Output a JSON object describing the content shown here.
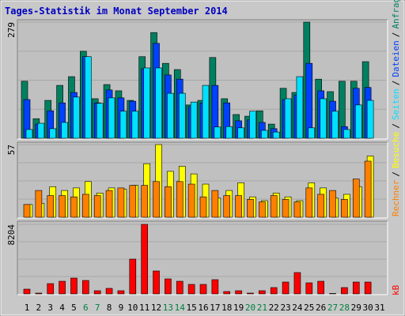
{
  "title": "Tages-Statistik im Monat September 2014",
  "separator": "/",
  "categories": [
    "1",
    "2",
    "3",
    "4",
    "5",
    "6",
    "7",
    "8",
    "9",
    "10",
    "11",
    "12",
    "13",
    "14",
    "15",
    "16",
    "17",
    "18",
    "19",
    "20",
    "21",
    "22",
    "23",
    "24",
    "25",
    "26",
    "27",
    "28",
    "29",
    "30",
    "31"
  ],
  "highlight_indices": [
    5,
    6,
    12,
    13,
    19,
    20,
    26,
    27
  ],
  "label_color": "#000000",
  "highlight_color": "#008040",
  "chart_data": [
    {
      "type": "bar",
      "ylim": [
        0,
        279
      ],
      "yticks": [
        279
      ],
      "series": [
        {
          "name": "Anfragen",
          "color": "#008060",
          "values": [
            137,
            47,
            91,
            127,
            148,
            209,
            95,
            129,
            114,
            91,
            196,
            254,
            180,
            165,
            80,
            91,
            194,
            95,
            57,
            53,
            66,
            34,
            120,
            110,
            279,
            142,
            112,
            137,
            137,
            184,
            null
          ]
        },
        {
          "name": "Dateien",
          "color": "#0040ff",
          "values": [
            93,
            34,
            66,
            85,
            110,
            196,
            85,
            116,
            97,
            89,
            167,
            228,
            152,
            142,
            76,
            85,
            127,
            85,
            42,
            44,
            38,
            23,
            93,
            104,
            180,
            114,
            89,
            28,
            120,
            122,
            null
          ]
        },
        {
          "name": "Seiten",
          "color": "#00e0ff",
          "values": [
            21,
            36,
            23,
            38,
            99,
            196,
            84,
            97,
            65,
            65,
            169,
            169,
            108,
            108,
            87,
            127,
            27,
            28,
            25,
            65,
            19,
            15,
            95,
            148,
            25,
            95,
            65,
            21,
            80,
            91,
            null
          ]
        }
      ]
    },
    {
      "type": "bar",
      "ylim": [
        0,
        57
      ],
      "yticks": [
        57
      ],
      "series": [
        {
          "name": "Besuche",
          "color": "#ffff00",
          "values": [
            10,
            11,
            24,
            21,
            23,
            28,
            19,
            23,
            22,
            25,
            42,
            57,
            36,
            40,
            34,
            26,
            15,
            21,
            27,
            16,
            13,
            19,
            16,
            13,
            27,
            23,
            15,
            18,
            24,
            48,
            null
          ]
        },
        {
          "name": "Rechner",
          "color": "#ff8000",
          "values": [
            10,
            21,
            17,
            17,
            16,
            18,
            17,
            21,
            23,
            25,
            25,
            28,
            24,
            28,
            26,
            16,
            21,
            17,
            17,
            14,
            12,
            17,
            14,
            12,
            23,
            18,
            21,
            14,
            30,
            44,
            null
          ]
        }
      ]
    },
    {
      "type": "bar",
      "ylim": [
        0,
        8204
      ],
      "yticks": [
        8204
      ],
      "series": [
        {
          "name": "kB",
          "color": "#ff0000",
          "values": [
            559,
            93,
            1212,
            1491,
            1864,
            1585,
            373,
            652,
            373,
            4102,
            8204,
            2704,
            1771,
            1491,
            1119,
            1119,
            1678,
            280,
            373,
            93,
            373,
            746,
            1398,
            2517,
            1305,
            1491,
            50,
            746,
            1398,
            1398,
            null
          ]
        }
      ]
    }
  ]
}
